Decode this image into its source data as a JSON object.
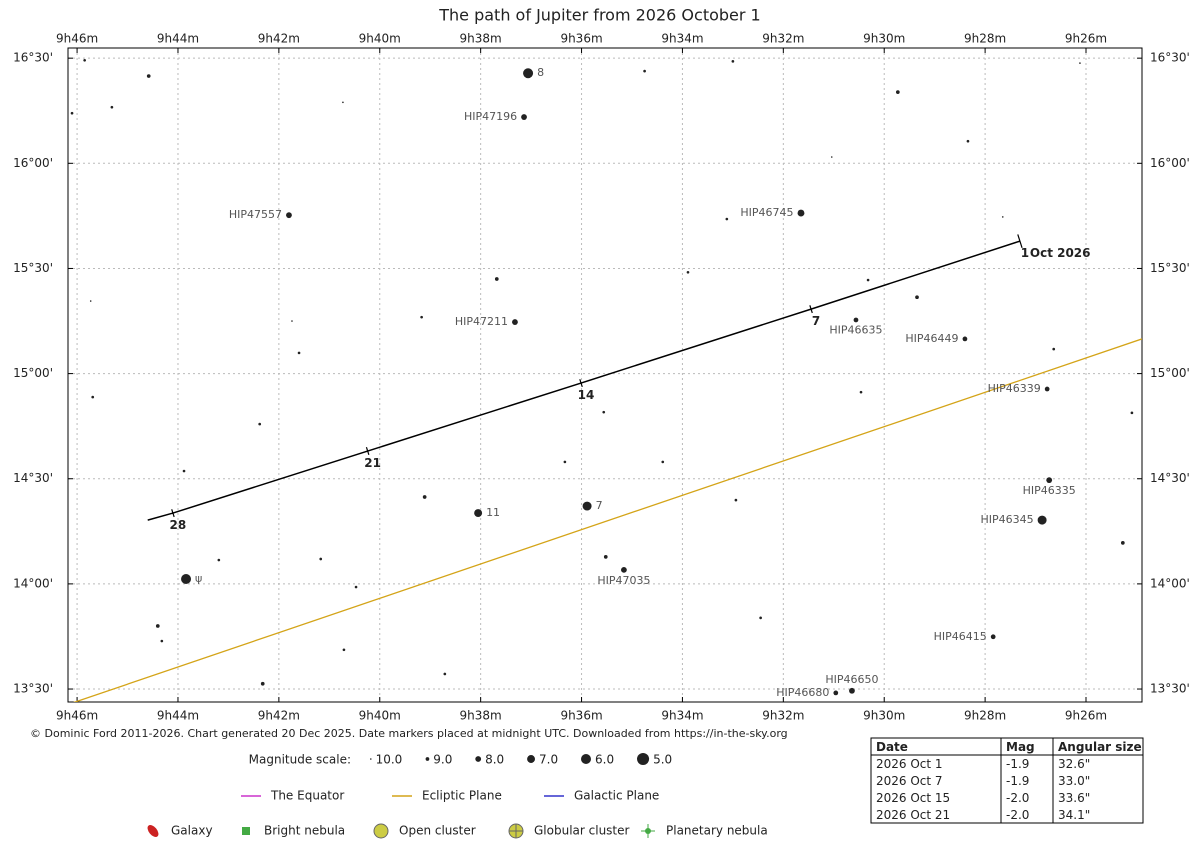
{
  "chart_data": {
    "type": "sky",
    "title": "The path of Jupiter from 2026 October 1",
    "credit": "© Dominic Ford 2011-2026. Chart generated 20 Dec 2025. Date markers placed at midnight UTC. Downloaded from https://in-the-sky.org",
    "xlim": [
      586.18,
      564.89
    ],
    "ylim": [
      806.3,
      992.9
    ],
    "xticks": [
      {
        "value": 586,
        "label": "9h46m"
      },
      {
        "value": 584,
        "label": "9h44m"
      },
      {
        "value": 582,
        "label": "9h42m"
      },
      {
        "value": 580,
        "label": "9h40m"
      },
      {
        "value": 578,
        "label": "9h38m"
      },
      {
        "value": 576,
        "label": "9h36m"
      },
      {
        "value": 574,
        "label": "9h34m"
      },
      {
        "value": 572,
        "label": "9h32m"
      },
      {
        "value": 570,
        "label": "9h30m"
      },
      {
        "value": 568,
        "label": "9h28m"
      },
      {
        "value": 566,
        "label": "9h26m"
      }
    ],
    "yticks": [
      {
        "value": 990,
        "label": "16°30'"
      },
      {
        "value": 960,
        "label": "16°00'"
      },
      {
        "value": 930,
        "label": "15°30'"
      },
      {
        "value": 900,
        "label": "15°00'"
      },
      {
        "value": 870,
        "label": "14°30'"
      },
      {
        "value": 840,
        "label": "14°00'"
      },
      {
        "value": 810,
        "label": "13°30'"
      }
    ],
    "grid": true,
    "stars": [
      {
        "ra": 577.06,
        "dec": 985.7,
        "mag": 6.0,
        "label": "8"
      },
      {
        "ra": 577.14,
        "dec": 973.2,
        "mag": 8.0,
        "label": "HIP47196"
      },
      {
        "ra": 581.8,
        "dec": 945.2,
        "mag": 8.0,
        "label": "HIP47557"
      },
      {
        "ra": 571.65,
        "dec": 945.8,
        "mag": 7.5,
        "label": "HIP46745"
      },
      {
        "ra": 577.32,
        "dec": 914.7,
        "mag": 8.0,
        "label": "HIP47211"
      },
      {
        "ra": 570.56,
        "dec": 915.3,
        "mag": 8.5,
        "label": "HIP46635"
      },
      {
        "ra": 568.4,
        "dec": 909.9,
        "mag": 8.5,
        "label": "HIP46449"
      },
      {
        "ra": 566.77,
        "dec": 895.6,
        "mag": 8.5,
        "label": "HIP46339"
      },
      {
        "ra": 566.73,
        "dec": 869.6,
        "mag": 8.0,
        "label": "HIP46335"
      },
      {
        "ra": 566.87,
        "dec": 858.2,
        "mag": 6.5,
        "label": "HIP46345"
      },
      {
        "ra": 578.05,
        "dec": 860.2,
        "mag": 7.0,
        "label": "11"
      },
      {
        "ra": 575.89,
        "dec": 862.2,
        "mag": 6.5,
        "label": "7"
      },
      {
        "ra": 583.84,
        "dec": 841.4,
        "mag": 6.0,
        "label": "ψ"
      },
      {
        "ra": 575.16,
        "dec": 844.0,
        "mag": 8.0,
        "label": "HIP47035"
      },
      {
        "ra": 567.84,
        "dec": 824.9,
        "mag": 8.5,
        "label": "HIP46415"
      },
      {
        "ra": 570.64,
        "dec": 809.5,
        "mag": 8.0,
        "label": "HIP46650"
      },
      {
        "ra": 570.96,
        "dec": 808.9,
        "mag": 8.5,
        "label": "HIP46680"
      },
      {
        "ra": 585.85,
        "dec": 989.4,
        "mag": 9.5
      },
      {
        "ra": 584.58,
        "dec": 984.9,
        "mag": 9.0
      },
      {
        "ra": 574.75,
        "dec": 986.3,
        "mag": 9.5
      },
      {
        "ra": 573.0,
        "dec": 989.1,
        "mag": 9.5
      },
      {
        "ra": 566.12,
        "dec": 988.6,
        "mag": 10.0
      },
      {
        "ra": 586.1,
        "dec": 974.3,
        "mag": 9.5
      },
      {
        "ra": 585.31,
        "dec": 976.0,
        "mag": 9.5
      },
      {
        "ra": 580.73,
        "dec": 977.4,
        "mag": 10.0
      },
      {
        "ra": 569.73,
        "dec": 980.3,
        "mag": 9.0
      },
      {
        "ra": 568.34,
        "dec": 966.3,
        "mag": 9.5
      },
      {
        "ra": 571.04,
        "dec": 961.8,
        "mag": 10.0
      },
      {
        "ra": 567.65,
        "dec": 944.7,
        "mag": 10.0
      },
      {
        "ra": 573.12,
        "dec": 944.1,
        "mag": 9.5
      },
      {
        "ra": 577.68,
        "dec": 927.0,
        "mag": 9.0
      },
      {
        "ra": 573.89,
        "dec": 928.9,
        "mag": 9.5
      },
      {
        "ra": 570.32,
        "dec": 926.7,
        "mag": 9.5
      },
      {
        "ra": 569.35,
        "dec": 921.8,
        "mag": 9.0
      },
      {
        "ra": 585.73,
        "dec": 920.7,
        "mag": 10.0
      },
      {
        "ra": 581.74,
        "dec": 915.0,
        "mag": 10.0
      },
      {
        "ra": 581.6,
        "dec": 905.9,
        "mag": 9.5
      },
      {
        "ra": 579.17,
        "dec": 916.1,
        "mag": 9.5
      },
      {
        "ra": 566.64,
        "dec": 907.0,
        "mag": 9.5
      },
      {
        "ra": 585.69,
        "dec": 893.3,
        "mag": 9.5
      },
      {
        "ra": 582.38,
        "dec": 885.6,
        "mag": 9.5
      },
      {
        "ra": 575.56,
        "dec": 889.0,
        "mag": 9.5
      },
      {
        "ra": 570.46,
        "dec": 894.7,
        "mag": 9.5
      },
      {
        "ra": 565.09,
        "dec": 888.8,
        "mag": 9.5
      },
      {
        "ra": 583.88,
        "dec": 872.2,
        "mag": 9.5
      },
      {
        "ra": 576.33,
        "dec": 874.8,
        "mag": 9.5
      },
      {
        "ra": 574.39,
        "dec": 874.8,
        "mag": 9.5
      },
      {
        "ra": 579.11,
        "dec": 864.8,
        "mag": 9.0
      },
      {
        "ra": 572.94,
        "dec": 863.9,
        "mag": 9.5
      },
      {
        "ra": 565.27,
        "dec": 851.7,
        "mag": 9.0
      },
      {
        "ra": 583.19,
        "dec": 846.8,
        "mag": 9.5
      },
      {
        "ra": 581.17,
        "dec": 847.1,
        "mag": 9.5
      },
      {
        "ra": 575.52,
        "dec": 847.7,
        "mag": 9.0
      },
      {
        "ra": 580.47,
        "dec": 839.1,
        "mag": 9.5
      },
      {
        "ra": 584.4,
        "dec": 828.0,
        "mag": 9.0
      },
      {
        "ra": 584.32,
        "dec": 823.7,
        "mag": 9.5
      },
      {
        "ra": 572.45,
        "dec": 830.3,
        "mag": 9.5
      },
      {
        "ra": 580.71,
        "dec": 821.2,
        "mag": 9.5
      },
      {
        "ra": 578.71,
        "dec": 814.3,
        "mag": 9.5
      },
      {
        "ra": 582.32,
        "dec": 811.5,
        "mag": 9.0
      }
    ],
    "path": {
      "month_label": "Oct 2026",
      "points": [
        {
          "ra": 567.31,
          "dec": 937.8,
          "label": "1"
        },
        {
          "ra": 571.45,
          "dec": 918.4,
          "label": "7"
        },
        {
          "ra": 576.01,
          "dec": 897.3,
          "label": "14"
        },
        {
          "ra": 580.24,
          "dec": 877.9,
          "label": "21"
        },
        {
          "ra": 584.1,
          "dec": 860.2,
          "label": "28"
        },
        {
          "ra": 584.6,
          "dec": 858.2
        }
      ]
    },
    "ecliptic": {
      "ra": [
        586.1,
        564.89
      ],
      "dec": [
        806.0,
        909.9
      ],
      "color": "#d4a418"
    },
    "magnitude_scale": {
      "label": "Magnitude scale:",
      "items": [
        {
          "value": 10,
          "label": "10.0"
        },
        {
          "value": 9,
          "label": "9.0"
        },
        {
          "value": 8,
          "label": "8.0"
        },
        {
          "value": 7,
          "label": "7.0"
        },
        {
          "value": 6,
          "label": "6.0"
        },
        {
          "value": 5,
          "label": "5.0"
        }
      ]
    },
    "planes": [
      {
        "name": "The Equator",
        "color": "#cc33cc"
      },
      {
        "name": "Ecliptic Plane",
        "color": "#d4a418"
      },
      {
        "name": "Galactic Plane",
        "color": "#3333cc"
      }
    ],
    "object_types": [
      "Galaxy",
      "Bright nebula",
      "Open cluster",
      "Globular cluster",
      "Planetary nebula"
    ],
    "table": {
      "header": [
        "Date",
        "Mag",
        "Angular size"
      ],
      "rows": [
        [
          "2026 Oct 1",
          "-1.9",
          "32.6\""
        ],
        [
          "2026 Oct 7",
          "-1.9",
          "33.0\""
        ],
        [
          "2026 Oct 15",
          "-2.0",
          "33.6\""
        ],
        [
          "2026 Oct 21",
          "-2.0",
          "34.1\""
        ]
      ]
    }
  }
}
